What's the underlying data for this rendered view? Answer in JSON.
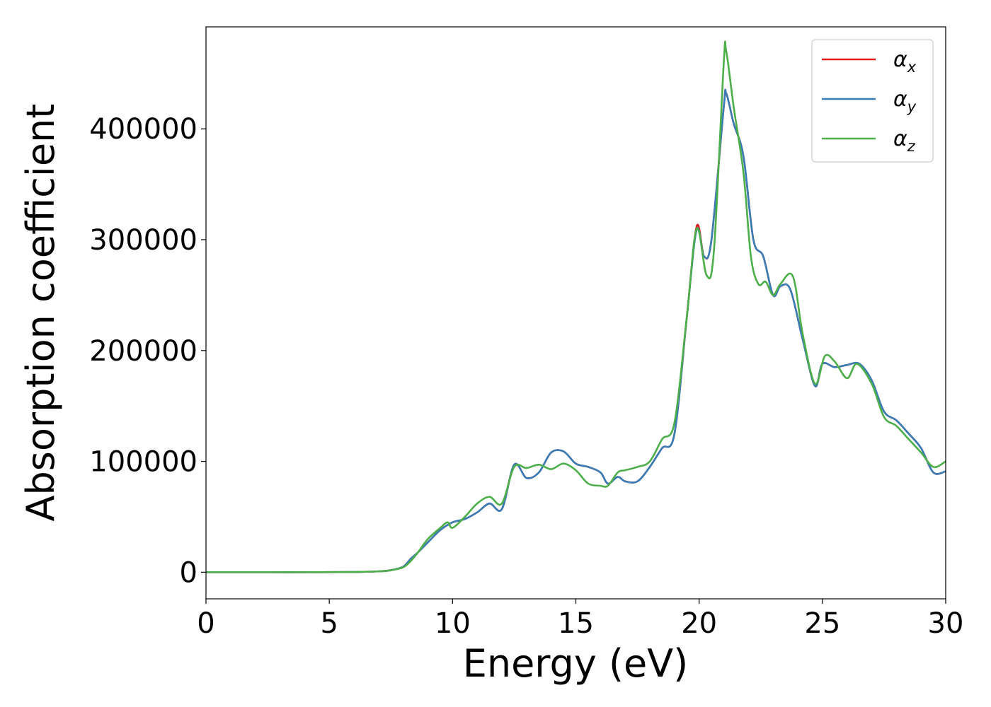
{
  "chart_data": {
    "type": "line",
    "xlabel": "Energy (eV)",
    "ylabel": "Absorption coefficient",
    "xlim": [
      0,
      30
    ],
    "ylim": [
      -24000,
      492000
    ],
    "x_ticks": [
      "0",
      "5",
      "10",
      "15",
      "20",
      "25",
      "30"
    ],
    "y_ticks": [
      "0",
      "100000",
      "200000",
      "300000",
      "400000"
    ],
    "grid": false,
    "legend_position": "top-right",
    "series": [
      {
        "name": "α",
        "subscript": "x",
        "color": "#e41a1c",
        "x": [
          0,
          2,
          4,
          6,
          7,
          7.5,
          8,
          8.3,
          8.6,
          9,
          9.5,
          10,
          10.5,
          11,
          11.5,
          12,
          12.5,
          13,
          13.5,
          14,
          14.5,
          15,
          15.5,
          16,
          16.3,
          16.7,
          17,
          17.5,
          18,
          18.5,
          19,
          19.5,
          19.9,
          20.2,
          20.5,
          21.0,
          21.1,
          21.4,
          21.8,
          22.2,
          22.6,
          23,
          23.3,
          23.7,
          24.2,
          24.7,
          25,
          25.5,
          26,
          26.5,
          27,
          27.5,
          28,
          28.5,
          29,
          29.5,
          30
        ],
        "values": [
          0,
          0,
          0,
          200,
          800,
          1800,
          5000,
          12000,
          18000,
          27000,
          38000,
          45000,
          48000,
          54000,
          62000,
          57000,
          97000,
          85000,
          90000,
          108000,
          109000,
          98000,
          95000,
          90000,
          80000,
          86000,
          82000,
          82000,
          95000,
          112000,
          125000,
          230000,
          312000,
          285000,
          300000,
          420000,
          432000,
          405000,
          375000,
          300000,
          285000,
          250000,
          258000,
          255000,
          210000,
          168000,
          188000,
          185000,
          187000,
          188000,
          173000,
          145000,
          137000,
          125000,
          112000,
          90000,
          91000
        ]
      },
      {
        "name": "α",
        "subscript": "y",
        "color": "#377eb8",
        "x": [
          0,
          2,
          4,
          6,
          7,
          7.5,
          8,
          8.3,
          8.6,
          9,
          9.5,
          10,
          10.5,
          11,
          11.5,
          12,
          12.5,
          13,
          13.5,
          14,
          14.5,
          15,
          15.5,
          16,
          16.3,
          16.7,
          17,
          17.5,
          18,
          18.5,
          19,
          19.5,
          19.9,
          20.2,
          20.5,
          21.0,
          21.1,
          21.4,
          21.8,
          22.2,
          22.6,
          23,
          23.3,
          23.7,
          24.2,
          24.7,
          25,
          25.5,
          26,
          26.5,
          27,
          27.5,
          28,
          28.5,
          29,
          29.5,
          30
        ],
        "values": [
          0,
          0,
          0,
          200,
          800,
          1800,
          5000,
          12000,
          18000,
          27000,
          38000,
          45000,
          48000,
          54000,
          62000,
          57000,
          97000,
          85000,
          90000,
          108000,
          109000,
          98000,
          95000,
          90000,
          80000,
          86000,
          82000,
          82000,
          95000,
          112000,
          125000,
          230000,
          309000,
          285000,
          300000,
          420000,
          432000,
          405000,
          375000,
          300000,
          285000,
          250000,
          258000,
          255000,
          210000,
          168000,
          188000,
          185000,
          187000,
          188000,
          173000,
          145000,
          137000,
          125000,
          112000,
          90000,
          91000
        ]
      },
      {
        "name": "α",
        "subscript": "z",
        "color": "#4daf4a",
        "x": [
          0,
          2,
          4,
          6,
          7,
          7.5,
          8,
          8.3,
          8.6,
          9,
          9.5,
          9.8,
          10,
          10.5,
          11,
          11.5,
          12,
          12.5,
          13,
          13.5,
          14,
          14.5,
          15,
          15.5,
          16,
          16.3,
          16.7,
          17,
          17.5,
          18,
          18.5,
          19,
          19.5,
          19.9,
          20.3,
          20.6,
          21.0,
          21.1,
          21.4,
          21.8,
          22.1,
          22.4,
          22.7,
          23,
          23.3,
          23.8,
          24.2,
          24.7,
          25.1,
          25.5,
          26,
          26.4,
          27,
          27.5,
          28,
          28.5,
          29,
          29.5,
          30
        ],
        "values": [
          0,
          0,
          0,
          200,
          800,
          1800,
          4500,
          10000,
          18000,
          30000,
          40000,
          45000,
          40000,
          50000,
          62000,
          68000,
          62000,
          95000,
          94000,
          97000,
          93000,
          98000,
          92000,
          80000,
          78000,
          78000,
          90000,
          92000,
          95000,
          100000,
          120000,
          135000,
          230000,
          310000,
          268000,
          290000,
          460000,
          470000,
          420000,
          360000,
          285000,
          260000,
          262000,
          250000,
          260000,
          267000,
          215000,
          170000,
          195000,
          190000,
          175000,
          188000,
          170000,
          140000,
          132000,
          120000,
          108000,
          95000,
          100000
        ]
      }
    ]
  }
}
